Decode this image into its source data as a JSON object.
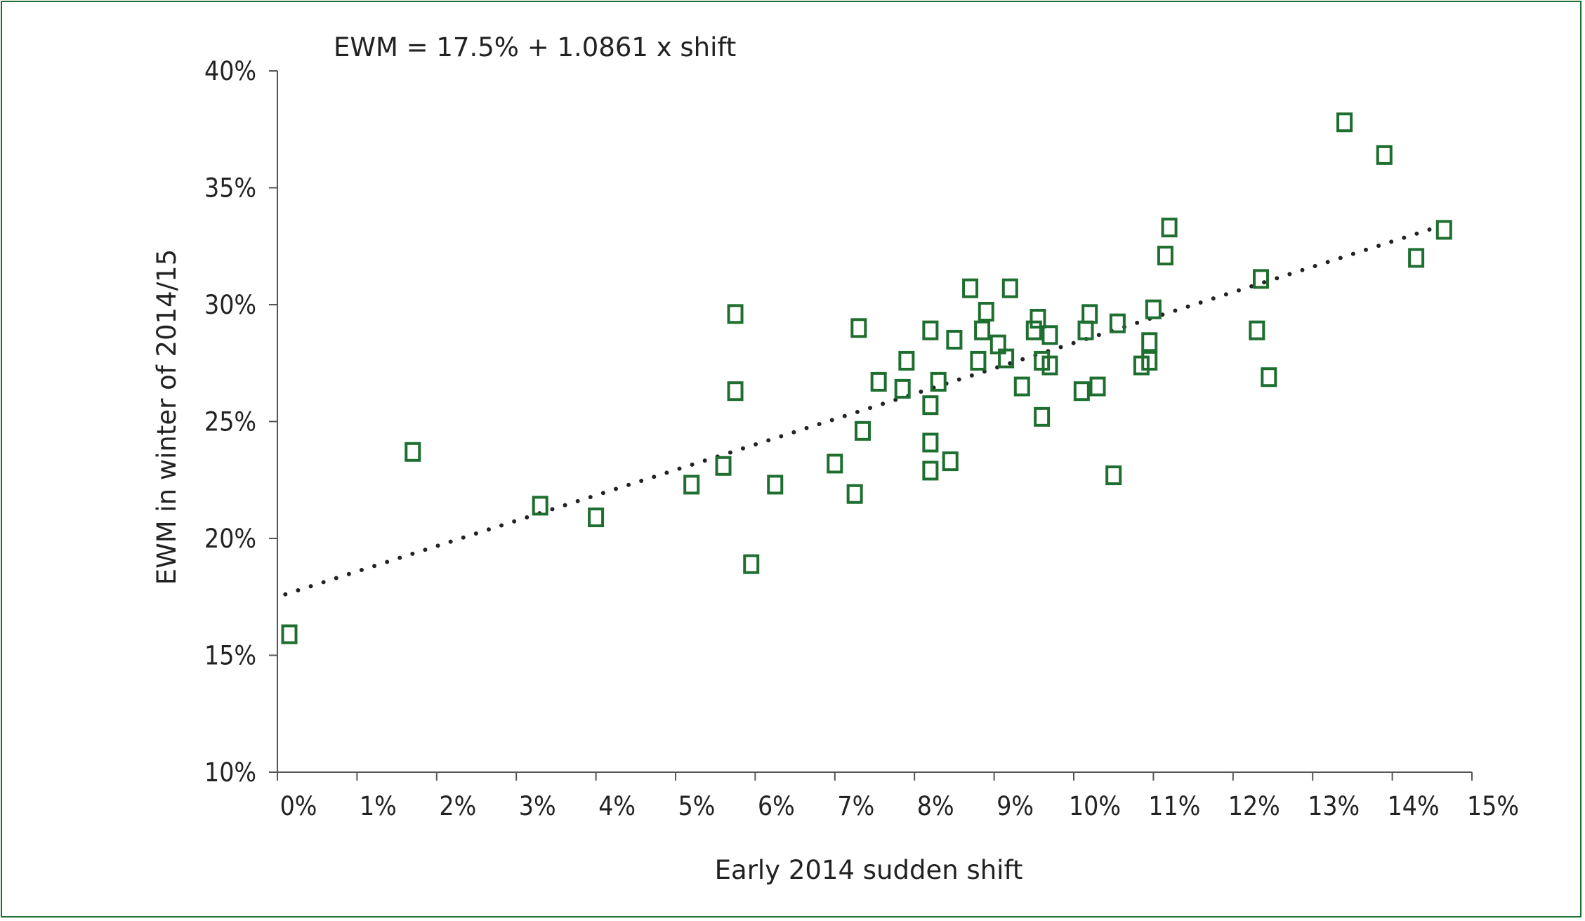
{
  "chart_data": {
    "type": "scatter",
    "title": "",
    "annotation": "EWM = 17.5% + 1.0861 x shift",
    "xlabel": "Early 2014 sudden shift",
    "ylabel": "EWM in winter of 2014/15",
    "xlim": [
      0,
      15
    ],
    "ylim": [
      10,
      40
    ],
    "xticks": [
      0,
      1,
      2,
      3,
      4,
      5,
      6,
      7,
      8,
      9,
      10,
      11,
      12,
      13,
      14,
      15
    ],
    "xtick_labels": [
      "0%",
      "1%",
      "2%",
      "3%",
      "4%",
      "5%",
      "6%",
      "7%",
      "8%",
      "9%",
      "10%",
      "11%",
      "12%",
      "13%",
      "14%",
      "15%"
    ],
    "yticks": [
      10,
      15,
      20,
      25,
      30,
      35,
      40
    ],
    "ytick_labels": [
      "10%",
      "15%",
      "20%",
      "25%",
      "30%",
      "35%",
      "40%"
    ],
    "grid": false,
    "marker": "hollow-square",
    "marker_color": "#1e6e2f",
    "trendline": {
      "style": "dotted",
      "color": "#222222",
      "intercept": 17.5,
      "slope": 1.0861,
      "x_range": [
        0.1,
        14.6
      ]
    },
    "series": [
      {
        "points": [
          [
            0.15,
            15.9
          ],
          [
            1.7,
            23.7
          ],
          [
            3.3,
            21.4
          ],
          [
            4.0,
            20.9
          ],
          [
            5.2,
            22.3
          ],
          [
            5.6,
            23.1
          ],
          [
            5.75,
            29.6
          ],
          [
            5.75,
            26.3
          ],
          [
            5.95,
            18.9
          ],
          [
            6.25,
            22.3
          ],
          [
            7.0,
            23.2
          ],
          [
            7.25,
            21.9
          ],
          [
            7.3,
            29.0
          ],
          [
            7.35,
            24.6
          ],
          [
            7.55,
            26.7
          ],
          [
            7.85,
            26.4
          ],
          [
            7.9,
            27.6
          ],
          [
            8.2,
            28.9
          ],
          [
            8.2,
            25.7
          ],
          [
            8.2,
            24.1
          ],
          [
            8.2,
            22.9
          ],
          [
            8.3,
            26.7
          ],
          [
            8.45,
            23.3
          ],
          [
            8.5,
            28.5
          ],
          [
            8.7,
            30.7
          ],
          [
            8.8,
            27.6
          ],
          [
            8.85,
            28.9
          ],
          [
            8.9,
            29.7
          ],
          [
            9.05,
            28.3
          ],
          [
            9.15,
            27.7
          ],
          [
            9.2,
            30.7
          ],
          [
            9.35,
            26.5
          ],
          [
            9.5,
            28.9
          ],
          [
            9.55,
            29.4
          ],
          [
            9.6,
            27.6
          ],
          [
            9.6,
            25.2
          ],
          [
            9.7,
            28.7
          ],
          [
            9.7,
            27.4
          ],
          [
            10.1,
            26.3
          ],
          [
            10.15,
            28.9
          ],
          [
            10.2,
            29.6
          ],
          [
            10.3,
            26.5
          ],
          [
            10.5,
            22.7
          ],
          [
            10.55,
            29.2
          ],
          [
            10.85,
            27.4
          ],
          [
            10.95,
            28.4
          ],
          [
            10.95,
            27.6
          ],
          [
            11.0,
            29.8
          ],
          [
            11.15,
            32.1
          ],
          [
            11.2,
            33.3
          ],
          [
            12.3,
            28.9
          ],
          [
            12.35,
            31.1
          ],
          [
            12.45,
            26.9
          ],
          [
            13.4,
            37.8
          ],
          [
            13.9,
            36.4
          ],
          [
            14.3,
            32.0
          ],
          [
            14.65,
            33.2
          ]
        ]
      }
    ]
  }
}
